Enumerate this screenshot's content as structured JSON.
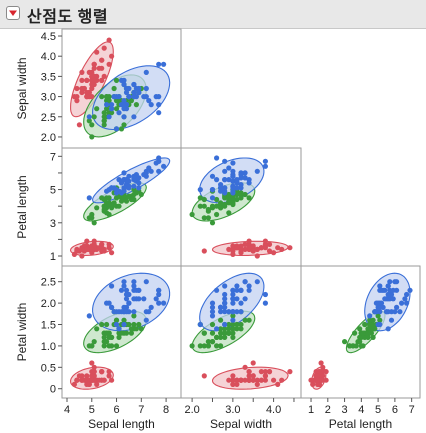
{
  "window": {
    "title": "산점도 행렬"
  },
  "chart_data": {
    "type": "scatter",
    "variables": [
      "Sepal length",
      "Sepal width",
      "Petal length",
      "Petal width"
    ],
    "axes": {
      "sepal_length": {
        "label": "Sepal length",
        "range": [
          4,
          8.4
        ],
        "ticks": [
          4,
          5,
          6,
          7,
          8
        ]
      },
      "sepal_width": {
        "label": "Sepal width",
        "range": [
          1.85,
          4.55
        ],
        "ticks": [
          2.0,
          2.5,
          3.0,
          3.5,
          4.0,
          4.5
        ],
        "x_tick_labels": [
          "2.0",
          "3.0",
          "4.0"
        ]
      },
      "petal_length": {
        "label": "Petal length",
        "range": [
          0.7,
          7.2
        ],
        "ticks": [
          1,
          2,
          3,
          4,
          5,
          6,
          7
        ],
        "y_tick_labels": [
          "1",
          "3",
          "5",
          "7"
        ]
      },
      "petal_width": {
        "label": "Petal width",
        "range": [
          -0.1,
          2.75
        ],
        "ticks": [
          0,
          0.5,
          1.0,
          1.5,
          2.0,
          2.5
        ]
      }
    },
    "ellipse_alpha": "density ellipses",
    "series": [
      {
        "color": "#d94f5c",
        "fill": "#f2c4c8",
        "points": [
          [
            5.1,
            3.5,
            1.4,
            0.2
          ],
          [
            4.9,
            3.0,
            1.4,
            0.2
          ],
          [
            4.7,
            3.2,
            1.3,
            0.2
          ],
          [
            4.6,
            3.1,
            1.5,
            0.2
          ],
          [
            5.0,
            3.6,
            1.4,
            0.2
          ],
          [
            5.4,
            3.9,
            1.7,
            0.4
          ],
          [
            4.6,
            3.4,
            1.4,
            0.3
          ],
          [
            5.0,
            3.4,
            1.5,
            0.2
          ],
          [
            4.4,
            2.9,
            1.4,
            0.2
          ],
          [
            4.9,
            3.1,
            1.5,
            0.1
          ],
          [
            5.4,
            3.7,
            1.5,
            0.2
          ],
          [
            4.8,
            3.4,
            1.6,
            0.2
          ],
          [
            4.8,
            3.0,
            1.4,
            0.1
          ],
          [
            4.3,
            3.0,
            1.1,
            0.1
          ],
          [
            5.8,
            4.0,
            1.2,
            0.2
          ],
          [
            5.7,
            4.4,
            1.5,
            0.4
          ],
          [
            5.4,
            3.9,
            1.3,
            0.4
          ],
          [
            5.1,
            3.5,
            1.4,
            0.3
          ],
          [
            5.7,
            3.8,
            1.7,
            0.3
          ],
          [
            5.1,
            3.8,
            1.5,
            0.3
          ],
          [
            5.4,
            3.4,
            1.7,
            0.2
          ],
          [
            5.1,
            3.7,
            1.5,
            0.4
          ],
          [
            4.6,
            3.6,
            1.0,
            0.2
          ],
          [
            5.1,
            3.3,
            1.7,
            0.5
          ],
          [
            4.8,
            3.4,
            1.9,
            0.2
          ],
          [
            5.0,
            3.0,
            1.6,
            0.2
          ],
          [
            5.0,
            3.4,
            1.6,
            0.4
          ],
          [
            5.2,
            3.5,
            1.5,
            0.2
          ],
          [
            5.2,
            3.4,
            1.4,
            0.2
          ],
          [
            4.7,
            3.2,
            1.6,
            0.2
          ],
          [
            4.8,
            3.1,
            1.6,
            0.2
          ],
          [
            5.4,
            3.4,
            1.5,
            0.4
          ],
          [
            5.2,
            4.1,
            1.5,
            0.1
          ],
          [
            5.5,
            4.2,
            1.4,
            0.2
          ],
          [
            4.9,
            3.1,
            1.5,
            0.2
          ],
          [
            5.0,
            3.2,
            1.2,
            0.2
          ],
          [
            5.5,
            3.5,
            1.3,
            0.2
          ],
          [
            4.9,
            3.6,
            1.4,
            0.1
          ],
          [
            4.4,
            3.0,
            1.3,
            0.2
          ],
          [
            5.1,
            3.4,
            1.5,
            0.2
          ],
          [
            5.0,
            3.5,
            1.3,
            0.3
          ],
          [
            4.5,
            2.3,
            1.3,
            0.3
          ],
          [
            4.4,
            3.2,
            1.3,
            0.2
          ],
          [
            5.0,
            3.5,
            1.6,
            0.6
          ],
          [
            5.1,
            3.8,
            1.9,
            0.4
          ],
          [
            4.8,
            3.0,
            1.4,
            0.3
          ],
          [
            5.1,
            3.8,
            1.6,
            0.2
          ],
          [
            4.6,
            3.2,
            1.4,
            0.2
          ],
          [
            5.3,
            3.7,
            1.5,
            0.2
          ],
          [
            5.0,
            3.3,
            1.4,
            0.2
          ]
        ]
      },
      {
        "color": "#3a9a3a",
        "fill": "#bfe0bf",
        "points": [
          [
            7.0,
            3.2,
            4.7,
            1.4
          ],
          [
            6.4,
            3.2,
            4.5,
            1.5
          ],
          [
            6.9,
            3.1,
            4.9,
            1.5
          ],
          [
            5.5,
            2.3,
            4.0,
            1.3
          ],
          [
            6.5,
            2.8,
            4.6,
            1.5
          ],
          [
            5.7,
            2.8,
            4.5,
            1.3
          ],
          [
            6.3,
            3.3,
            4.7,
            1.6
          ],
          [
            4.9,
            2.4,
            3.3,
            1.0
          ],
          [
            6.6,
            2.9,
            4.6,
            1.3
          ],
          [
            5.2,
            2.7,
            3.9,
            1.4
          ],
          [
            5.0,
            2.0,
            3.5,
            1.0
          ],
          [
            5.9,
            3.0,
            4.2,
            1.5
          ],
          [
            6.0,
            2.2,
            4.0,
            1.0
          ],
          [
            6.1,
            2.9,
            4.7,
            1.4
          ],
          [
            5.6,
            2.9,
            3.6,
            1.3
          ],
          [
            6.7,
            3.1,
            4.4,
            1.4
          ],
          [
            5.6,
            3.0,
            4.5,
            1.5
          ],
          [
            5.8,
            2.7,
            4.1,
            1.0
          ],
          [
            6.2,
            2.2,
            4.5,
            1.5
          ],
          [
            5.6,
            2.5,
            3.9,
            1.1
          ],
          [
            5.9,
            3.2,
            4.8,
            1.8
          ],
          [
            6.1,
            2.8,
            4.0,
            1.3
          ],
          [
            6.3,
            2.5,
            4.9,
            1.5
          ],
          [
            6.1,
            2.8,
            4.7,
            1.2
          ],
          [
            6.4,
            2.9,
            4.3,
            1.3
          ],
          [
            6.6,
            3.0,
            4.4,
            1.4
          ],
          [
            6.8,
            2.8,
            4.8,
            1.4
          ],
          [
            6.7,
            3.0,
            5.0,
            1.7
          ],
          [
            6.0,
            2.9,
            4.5,
            1.5
          ],
          [
            5.7,
            2.6,
            3.5,
            1.0
          ],
          [
            5.5,
            2.4,
            3.8,
            1.1
          ],
          [
            5.5,
            2.4,
            3.7,
            1.0
          ],
          [
            5.8,
            2.7,
            3.9,
            1.2
          ],
          [
            6.0,
            2.7,
            5.1,
            1.6
          ],
          [
            5.4,
            3.0,
            4.5,
            1.5
          ],
          [
            6.0,
            3.4,
            4.5,
            1.6
          ],
          [
            6.7,
            3.1,
            4.7,
            1.5
          ],
          [
            6.3,
            2.3,
            4.4,
            1.3
          ],
          [
            5.6,
            3.0,
            4.1,
            1.3
          ],
          [
            5.5,
            2.5,
            4.0,
            1.3
          ],
          [
            5.5,
            2.6,
            4.4,
            1.2
          ],
          [
            6.1,
            3.0,
            4.6,
            1.4
          ],
          [
            5.8,
            2.6,
            4.0,
            1.2
          ],
          [
            5.0,
            2.3,
            3.3,
            1.0
          ],
          [
            5.6,
            2.7,
            4.2,
            1.3
          ],
          [
            5.7,
            3.0,
            4.2,
            1.2
          ],
          [
            5.7,
            2.9,
            4.2,
            1.3
          ],
          [
            6.2,
            2.9,
            4.3,
            1.3
          ],
          [
            5.1,
            2.5,
            3.0,
            1.1
          ],
          [
            5.7,
            2.8,
            4.1,
            1.3
          ]
        ]
      },
      {
        "color": "#3a6fd8",
        "fill": "#c3d1f2",
        "points": [
          [
            6.3,
            3.3,
            6.0,
            2.5
          ],
          [
            5.8,
            2.7,
            5.1,
            1.9
          ],
          [
            7.1,
            3.0,
            5.9,
            2.1
          ],
          [
            6.3,
            2.9,
            5.6,
            1.8
          ],
          [
            6.5,
            3.0,
            5.8,
            2.2
          ],
          [
            7.6,
            3.0,
            6.6,
            2.1
          ],
          [
            4.9,
            2.5,
            4.5,
            1.7
          ],
          [
            7.3,
            2.9,
            6.3,
            1.8
          ],
          [
            6.7,
            2.5,
            5.8,
            1.8
          ],
          [
            7.2,
            3.6,
            6.1,
            2.5
          ],
          [
            6.5,
            3.2,
            5.1,
            2.0
          ],
          [
            6.4,
            2.7,
            5.3,
            1.9
          ],
          [
            6.8,
            3.0,
            5.5,
            2.1
          ],
          [
            5.7,
            2.5,
            5.0,
            2.0
          ],
          [
            5.8,
            2.8,
            5.1,
            2.4
          ],
          [
            6.4,
            3.2,
            5.3,
            2.3
          ],
          [
            6.5,
            3.0,
            5.5,
            1.8
          ],
          [
            7.7,
            3.8,
            6.7,
            2.2
          ],
          [
            7.7,
            2.6,
            6.9,
            2.3
          ],
          [
            6.0,
            2.2,
            5.0,
            1.5
          ],
          [
            6.9,
            3.2,
            5.7,
            2.3
          ],
          [
            5.6,
            2.8,
            4.9,
            2.0
          ],
          [
            7.7,
            2.8,
            6.7,
            2.0
          ],
          [
            6.3,
            2.7,
            4.9,
            1.8
          ],
          [
            6.7,
            3.3,
            5.7,
            2.1
          ],
          [
            7.2,
            3.2,
            6.0,
            1.8
          ],
          [
            6.2,
            2.8,
            4.8,
            1.8
          ],
          [
            6.1,
            3.0,
            4.9,
            1.8
          ],
          [
            6.4,
            2.8,
            5.6,
            2.1
          ],
          [
            7.2,
            3.0,
            5.8,
            1.6
          ],
          [
            7.4,
            2.8,
            6.1,
            1.9
          ],
          [
            7.9,
            3.8,
            6.4,
            2.0
          ],
          [
            6.4,
            2.8,
            5.6,
            2.2
          ],
          [
            6.3,
            2.8,
            5.1,
            1.5
          ],
          [
            6.1,
            2.6,
            5.6,
            1.4
          ],
          [
            7.7,
            3.0,
            6.1,
            2.3
          ],
          [
            6.3,
            3.4,
            5.6,
            2.4
          ],
          [
            6.4,
            3.1,
            5.5,
            1.8
          ],
          [
            6.0,
            3.0,
            4.8,
            1.8
          ],
          [
            6.9,
            3.1,
            5.4,
            2.1
          ],
          [
            6.7,
            3.1,
            5.6,
            2.4
          ],
          [
            6.9,
            3.1,
            5.1,
            2.3
          ],
          [
            5.8,
            2.7,
            5.1,
            1.9
          ],
          [
            6.8,
            3.2,
            5.9,
            2.3
          ],
          [
            6.7,
            3.3,
            5.7,
            2.5
          ],
          [
            6.7,
            3.0,
            5.2,
            2.3
          ],
          [
            6.3,
            2.5,
            5.0,
            1.9
          ],
          [
            6.5,
            3.0,
            5.2,
            2.0
          ],
          [
            6.2,
            3.4,
            5.4,
            2.3
          ],
          [
            5.9,
            3.0,
            5.1,
            1.8
          ]
        ]
      }
    ]
  }
}
